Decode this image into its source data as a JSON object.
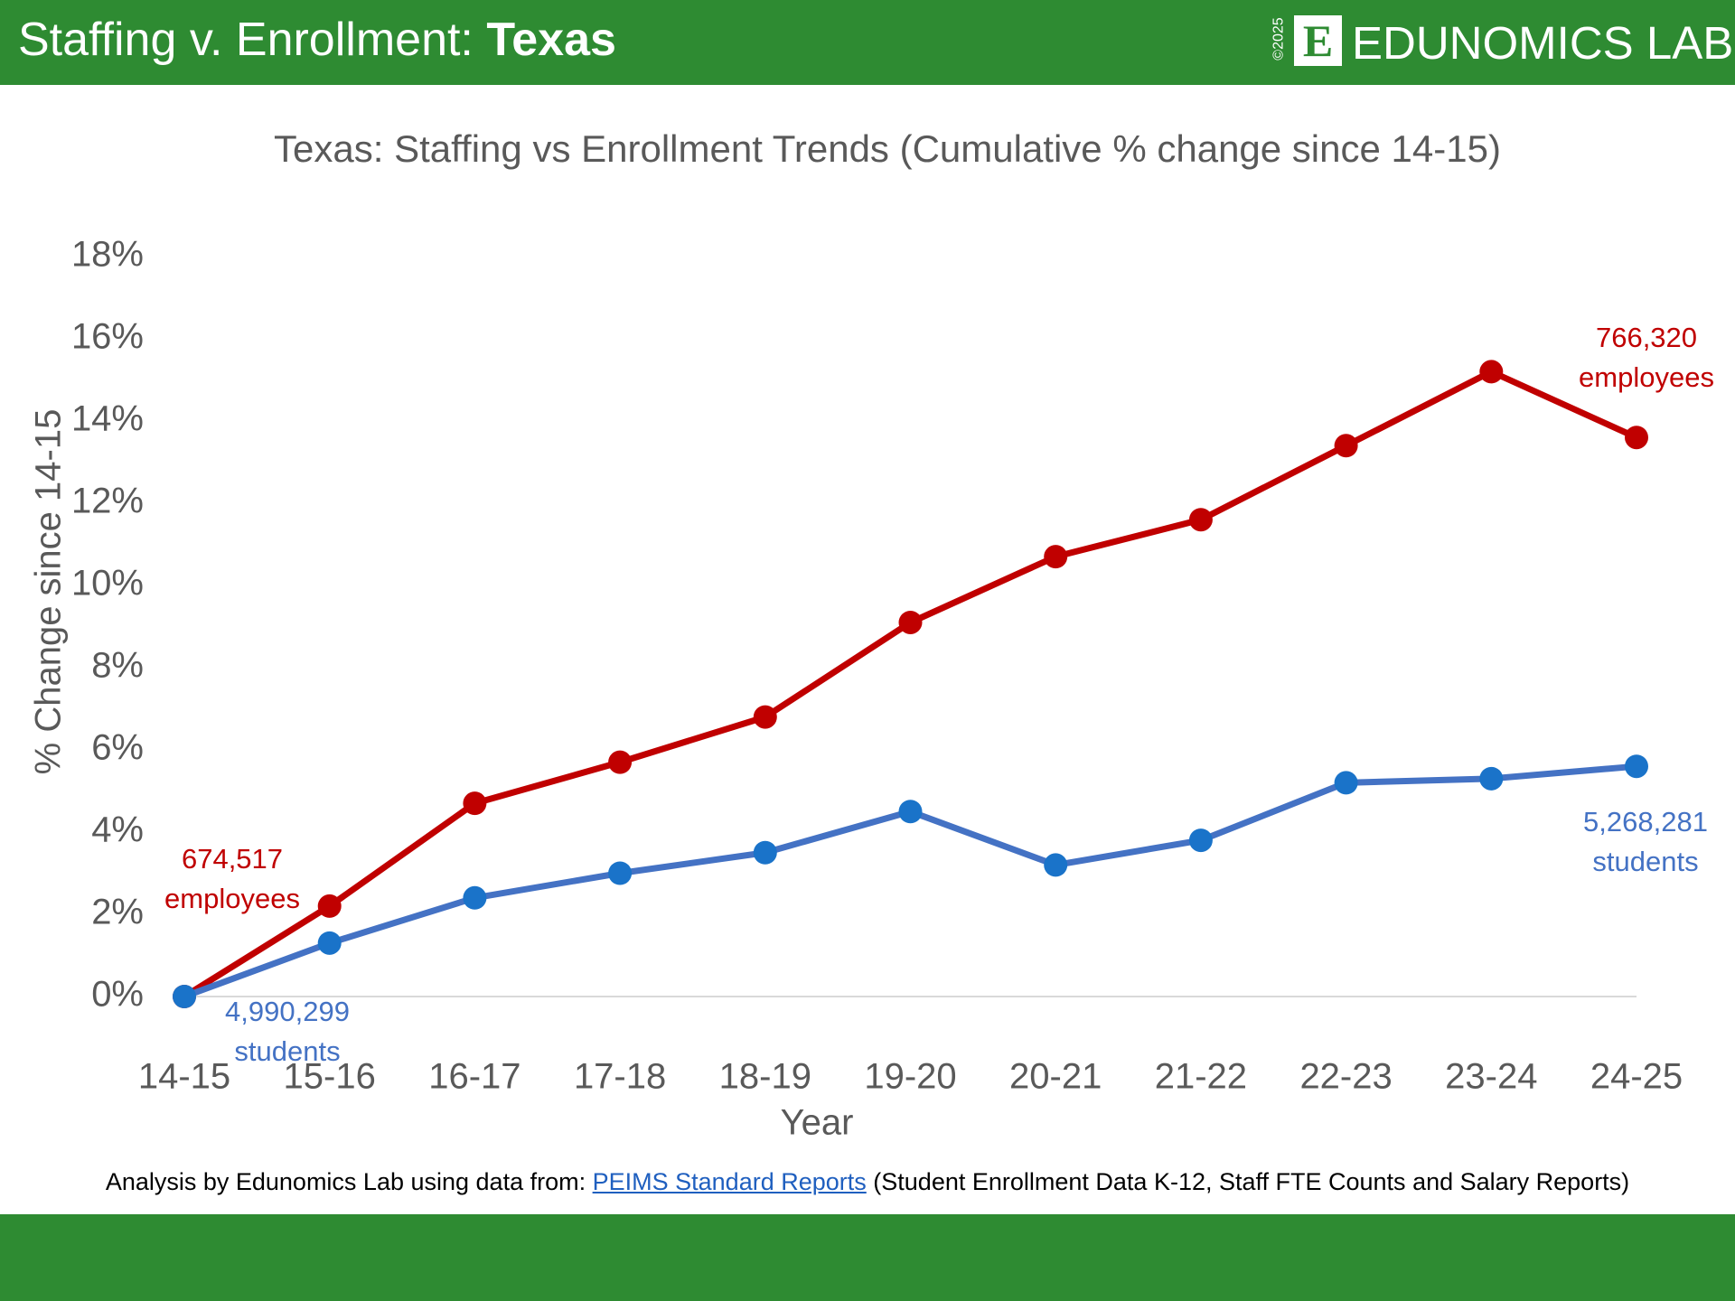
{
  "header": {
    "title": "Staffing v. Enrollment:",
    "title_bold": "Texas",
    "logo_year": "©2025",
    "logo_mark": "E",
    "logo_text": "EDUNOMICS LAB"
  },
  "chart_data": {
    "type": "line",
    "title": "Texas: Staffing vs Enrollment Trends (Cumulative % change since 14-15)",
    "x_label": "Year",
    "y_label": "% Change since 14-15",
    "categories": [
      "14-15",
      "15-16",
      "16-17",
      "17-18",
      "18-19",
      "19-20",
      "20-21",
      "21-22",
      "22-23",
      "23-24",
      "24-25"
    ],
    "ylim": [
      0,
      18
    ],
    "yticks": [
      {
        "value": 0,
        "label": "0%"
      },
      {
        "value": 2,
        "label": "2%"
      },
      {
        "value": 4,
        "label": "4%"
      },
      {
        "value": 6,
        "label": "6%"
      },
      {
        "value": 8,
        "label": "8%"
      },
      {
        "value": 10,
        "label": "10%"
      },
      {
        "value": 12,
        "label": "12%"
      },
      {
        "value": 14,
        "label": "14%"
      },
      {
        "value": 16,
        "label": "16%"
      },
      {
        "value": 18,
        "label": "18%"
      }
    ],
    "grid": false,
    "series": [
      {
        "color": "#c00000",
        "marker_color": "#c00000",
        "values": [
          0,
          2.2,
          4.7,
          5.7,
          6.8,
          9.1,
          10.7,
          11.6,
          13.4,
          15.2,
          13.6
        ],
        "start_label": [
          "674,517",
          "employees"
        ],
        "end_label": [
          "766,320",
          "employees"
        ]
      },
      {
        "color": "#4472c4",
        "marker_color": "#1a73c9",
        "values": [
          0,
          1.3,
          2.4,
          3.0,
          3.5,
          4.5,
          3.2,
          3.8,
          5.2,
          5.3,
          5.6
        ],
        "start_label": [
          "4,990,299",
          "students"
        ],
        "end_label": [
          "5,268,281",
          "students"
        ]
      }
    ]
  },
  "footer": {
    "prefix": "Analysis by Edunomics Lab using data from:",
    "link": "PEIMS Standard Reports",
    "suffix": "(Student Enrollment Data K-12, Staff FTE Counts and Salary Reports)"
  }
}
